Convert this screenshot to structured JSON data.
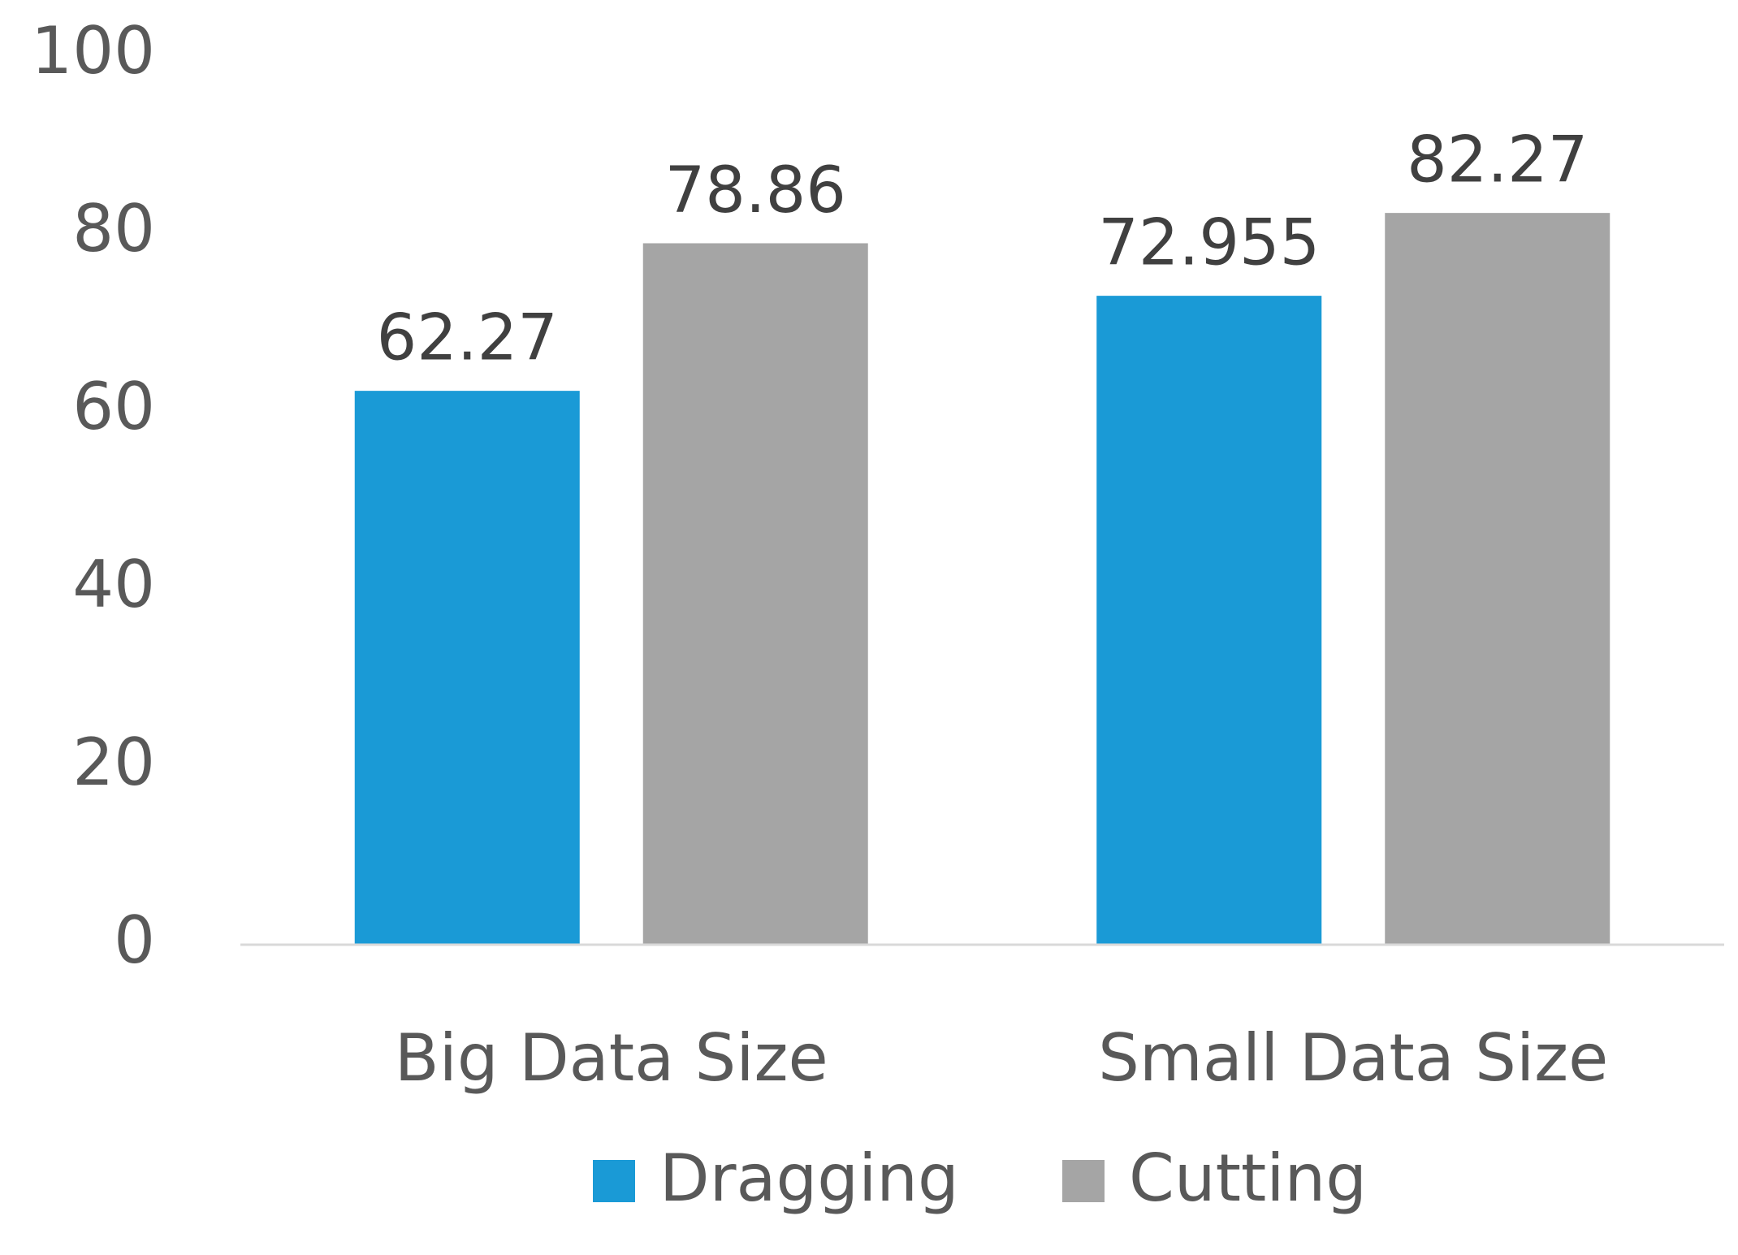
{
  "chart_data": {
    "type": "bar",
    "categories": [
      "Big Data Size",
      "Small Data Size"
    ],
    "series": [
      {
        "name": "Dragging",
        "color": "#1a9ad6",
        "values": [
          62.27,
          72.955
        ]
      },
      {
        "name": "Cutting",
        "color": "#a5a5a5",
        "values": [
          78.86,
          82.27
        ]
      }
    ],
    "ylim": [
      0,
      100
    ],
    "yticks": [
      0,
      20,
      40,
      60,
      80,
      100
    ],
    "grid": false,
    "legend": "bottom"
  }
}
